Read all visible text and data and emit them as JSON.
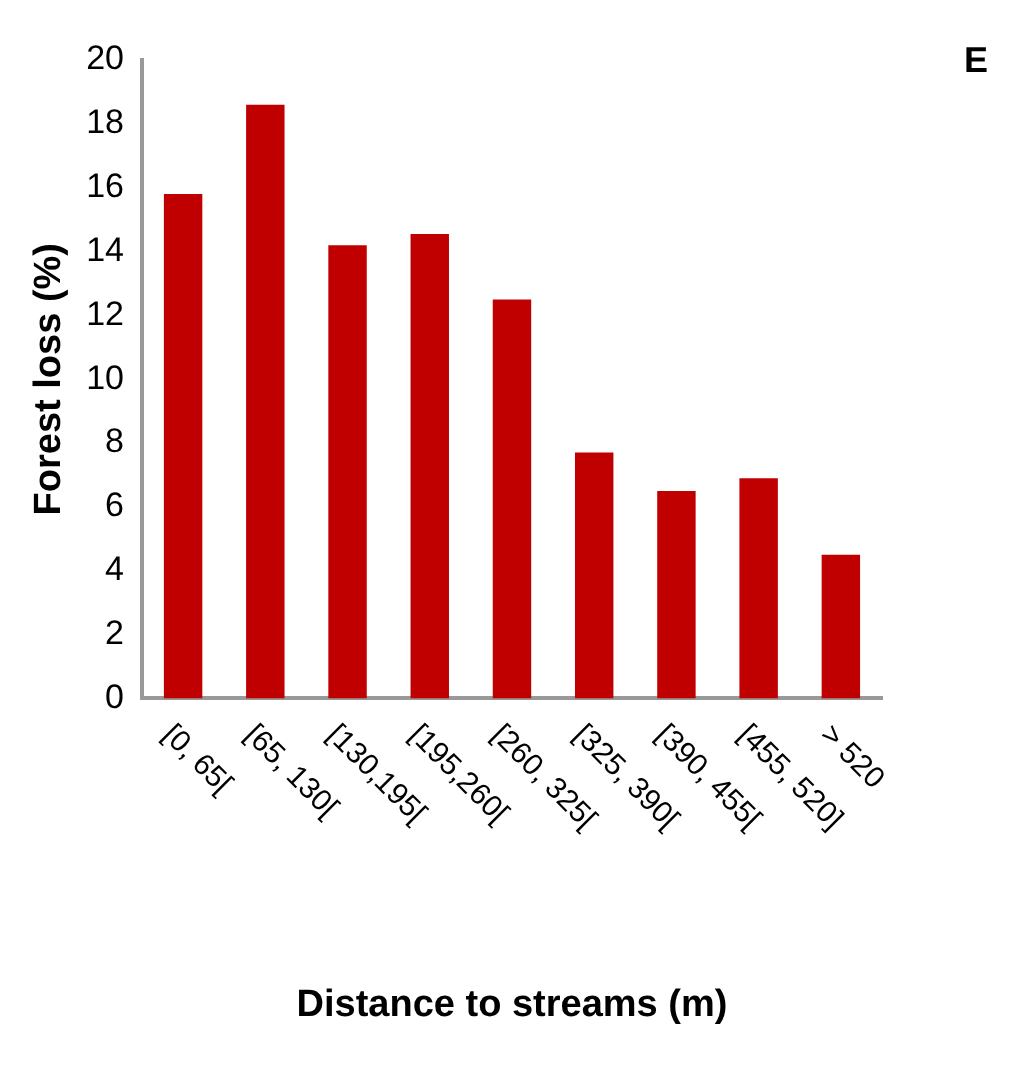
{
  "chart_data": {
    "type": "bar",
    "xlabel": "Distance to streams (m)",
    "ylabel": "Forest loss (%)",
    "categories": [
      "[0, 65[",
      "[65, 130[",
      "[130,195[",
      "[195,260[",
      "[260, 325[",
      "[325, 390[",
      "[390, 455[",
      "[455, 520]",
      "> 520"
    ],
    "values": [
      15.8,
      18.6,
      14.2,
      14.55,
      12.5,
      7.7,
      6.5,
      6.9,
      4.5
    ],
    "color": "#c00000",
    "ylim": [
      0,
      20
    ],
    "yticks": [
      0,
      2,
      4,
      6,
      8,
      10,
      12,
      14,
      16,
      18,
      20
    ],
    "grid": false,
    "legend": false,
    "annotations": [
      "E"
    ]
  }
}
